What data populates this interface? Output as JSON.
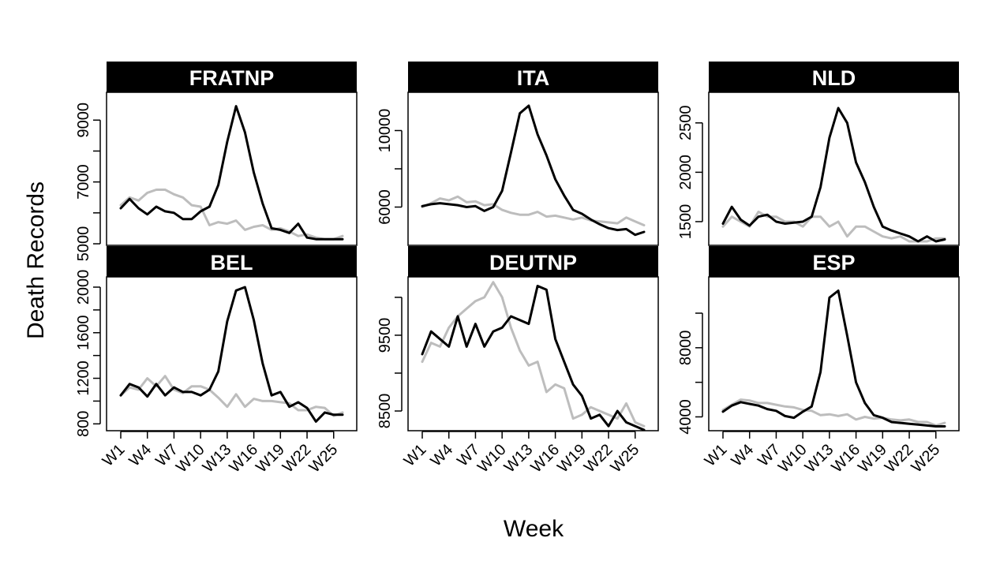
{
  "chart_data": {
    "type": "line",
    "xlabel": "Week",
    "ylabel": "Death Records",
    "weeks": [
      "W1",
      "W2",
      "W3",
      "W4",
      "W5",
      "W6",
      "W7",
      "W8",
      "W9",
      "W10",
      "W11",
      "W12",
      "W13",
      "W14",
      "W15",
      "W16",
      "W17",
      "W18",
      "W19",
      "W20",
      "W21",
      "W22",
      "W23",
      "W24",
      "W25",
      "W26"
    ],
    "x_tick_labels": [
      "W1",
      "W4",
      "W7",
      "W10",
      "W13",
      "W16",
      "W19",
      "W22",
      "W25"
    ],
    "colors": {
      "current": "#000000",
      "baseline": "#bdbdbd"
    },
    "panels": [
      {
        "name": "FRATNP",
        "ylim": [
          4950,
          9900
        ],
        "yticks": [
          5000,
          7000,
          9000
        ],
        "yticks_minor": [
          6000,
          8000
        ],
        "series": [
          {
            "style": "baseline",
            "values": [
              6250,
              6500,
              6400,
              6650,
              6750,
              6750,
              6600,
              6500,
              6250,
              6200,
              5600,
              5700,
              5650,
              5750,
              5450,
              5550,
              5600,
              5450,
              5500,
              5400,
              5250,
              5300,
              5200,
              5150,
              5150,
              5250
            ]
          },
          {
            "style": "current",
            "values": [
              6150,
              6450,
              6150,
              5950,
              6200,
              6050,
              6000,
              5800,
              5800,
              6050,
              6200,
              6900,
              8300,
              9450,
              8600,
              7300,
              6300,
              5500,
              5450,
              5350,
              5650,
              5200,
              5150,
              5150,
              5150,
              5150
            ]
          }
        ]
      },
      {
        "name": "ITA",
        "ylim": [
          4000,
          12000
        ],
        "yticks": [
          6000,
          10000
        ],
        "yticks_minor": [
          8000
        ],
        "series": [
          {
            "style": "baseline",
            "values": [
              6000,
              6200,
              6450,
              6350,
              6550,
              6250,
              6300,
              6100,
              6150,
              5850,
              5700,
              5600,
              5600,
              5750,
              5500,
              5550,
              5450,
              5350,
              5450,
              5300,
              5250,
              5200,
              5150,
              5450,
              5250,
              5050
            ]
          },
          {
            "style": "current",
            "values": [
              6050,
              6150,
              6200,
              6150,
              6100,
              6000,
              6050,
              5800,
              6000,
              6850,
              8850,
              10900,
              11300,
              9800,
              8700,
              7450,
              6600,
              5850,
              5650,
              5350,
              5100,
              4900,
              4800,
              4850,
              4550,
              4700
            ]
          }
        ]
      },
      {
        "name": "NLD",
        "ylim": [
          1260,
          2810
        ],
        "yticks": [
          1500,
          2000,
          2500
        ],
        "yticks_minor": [],
        "series": [
          {
            "style": "baseline",
            "values": [
              1450,
              1550,
              1500,
              1450,
              1600,
              1550,
              1550,
              1500,
              1500,
              1450,
              1550,
              1550,
              1450,
              1500,
              1350,
              1450,
              1450,
              1400,
              1350,
              1330,
              1350,
              1300,
              1300,
              1300,
              1330,
              1330
            ]
          },
          {
            "style": "current",
            "values": [
              1480,
              1650,
              1520,
              1460,
              1550,
              1570,
              1500,
              1480,
              1490,
              1500,
              1550,
              1850,
              2350,
              2650,
              2500,
              2100,
              1900,
              1650,
              1450,
              1410,
              1380,
              1350,
              1300,
              1350,
              1300,
              1320
            ]
          }
        ]
      },
      {
        "name": "BEL",
        "ylim": [
          740,
          2090
        ],
        "yticks": [
          800,
          1200,
          1600,
          2000
        ],
        "yticks_minor": [
          1000,
          1400,
          1800
        ],
        "series": [
          {
            "style": "baseline",
            "values": [
              1050,
              1120,
              1100,
              1200,
              1130,
              1220,
              1100,
              1070,
              1130,
              1130,
              1100,
              1030,
              950,
              1060,
              950,
              1020,
              1000,
              1000,
              990,
              980,
              920,
              920,
              950,
              940,
              870,
              900
            ]
          },
          {
            "style": "current",
            "values": [
              1050,
              1150,
              1120,
              1040,
              1150,
              1050,
              1120,
              1080,
              1080,
              1050,
              1100,
              1260,
              1700,
              1970,
              2000,
              1710,
              1330,
              1050,
              1080,
              950,
              990,
              940,
              820,
              900,
              880,
              880
            ]
          }
        ]
      },
      {
        "name": "DEUTNP",
        "ylim": [
          8240,
          10270
        ],
        "yticks": [
          8500,
          9500
        ],
        "yticks_minor": [
          9000,
          10000
        ],
        "series": [
          {
            "style": "baseline",
            "values": [
              9150,
              9400,
              9350,
              9600,
              9750,
              9850,
              9950,
              10000,
              10200,
              10000,
              9600,
              9300,
              9100,
              9150,
              8750,
              8850,
              8800,
              8400,
              8450,
              8550,
              8500,
              8450,
              8400,
              8600,
              8350,
              8300
            ]
          },
          {
            "style": "current",
            "values": [
              9250,
              9550,
              9450,
              9350,
              9750,
              9350,
              9650,
              9350,
              9550,
              9600,
              9750,
              9700,
              9650,
              10150,
              10100,
              9450,
              9150,
              8850,
              8700,
              8400,
              8450,
              8300,
              8500,
              8350,
              8300,
              8250
            ]
          }
        ]
      },
      {
        "name": "ESP",
        "ylim": [
          3200,
          12100
        ],
        "yticks": [
          4000,
          8000
        ],
        "yticks_minor": [
          6000,
          10000
        ],
        "series": [
          {
            "style": "baseline",
            "values": [
              4400,
              4700,
              5000,
              4950,
              4800,
              4800,
              4700,
              4600,
              4550,
              4400,
              4350,
              4100,
              4150,
              4050,
              4150,
              3850,
              4000,
              3900,
              3950,
              3850,
              3800,
              3850,
              3700,
              3700,
              3500,
              3650
            ]
          },
          {
            "style": "current",
            "values": [
              4300,
              4650,
              4850,
              4750,
              4650,
              4450,
              4350,
              4050,
              3950,
              4300,
              4600,
              6600,
              10900,
              11300,
              8700,
              6000,
              4800,
              4100,
              3950,
              3700,
              3650,
              3600,
              3550,
              3500,
              3450,
              3450
            ]
          }
        ]
      }
    ]
  }
}
